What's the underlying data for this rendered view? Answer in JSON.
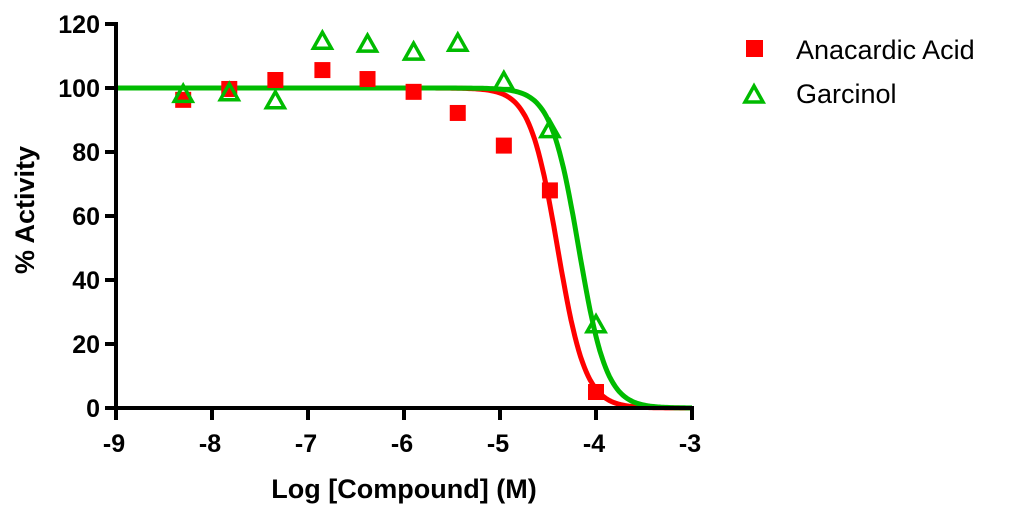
{
  "chart_data": {
    "type": "scatter",
    "title": "",
    "xlabel": "Log [Compound] (M)",
    "ylabel": "% Activity",
    "xlim": [
      -9,
      -3
    ],
    "ylim": [
      0,
      120
    ],
    "xticks": [
      -9,
      -8,
      -7,
      -6,
      -5,
      -4,
      -3
    ],
    "yticks": [
      0,
      20,
      40,
      60,
      80,
      100,
      120
    ],
    "grid": false,
    "legend_position": "top-right outside",
    "series": [
      {
        "name": "Anacardic Acid",
        "color": "#ff0000",
        "marker": "square-filled",
        "x": [
          -8.3,
          -7.82,
          -7.34,
          -6.85,
          -6.38,
          -5.9,
          -5.44,
          -4.96,
          -4.48,
          -4.0
        ],
        "y": [
          96.3,
          99.7,
          102.5,
          105.6,
          102.8,
          98.8,
          92.2,
          82.0,
          68.0,
          5.0
        ],
        "fit": {
          "model": "sigmoidal dose-response",
          "top": 100,
          "bottom": 0,
          "logIC50": -4.4,
          "hill_slope": -3.0
        }
      },
      {
        "name": "Garcinol",
        "color": "#00bb00",
        "marker": "triangle-open",
        "x": [
          -8.3,
          -7.82,
          -7.34,
          -6.85,
          -6.38,
          -5.9,
          -5.44,
          -4.96,
          -4.48,
          -4.0
        ],
        "y": [
          98.0,
          98.5,
          96.0,
          114.6,
          113.7,
          111.2,
          114.0,
          102.0,
          87.0,
          26.0
        ],
        "fit": {
          "model": "sigmoidal dose-response",
          "top": 100,
          "bottom": 0,
          "logIC50": -4.18,
          "hill_slope": -3.0
        }
      }
    ]
  },
  "legend": {
    "items": [
      {
        "label": "Anacardic Acid",
        "color": "#ff0000",
        "marker": "square-filled"
      },
      {
        "label": "Garcinol",
        "color": "#00bb00",
        "marker": "triangle-open"
      }
    ]
  },
  "axes": {
    "x_title": "Log [Compound] (M)",
    "y_title": "% Activity",
    "x_tick_labels": [
      "-9",
      "-8",
      "-7",
      "-6",
      "-5",
      "-4",
      "-3"
    ],
    "y_tick_labels": [
      "0",
      "20",
      "40",
      "60",
      "80",
      "100",
      "120"
    ]
  }
}
